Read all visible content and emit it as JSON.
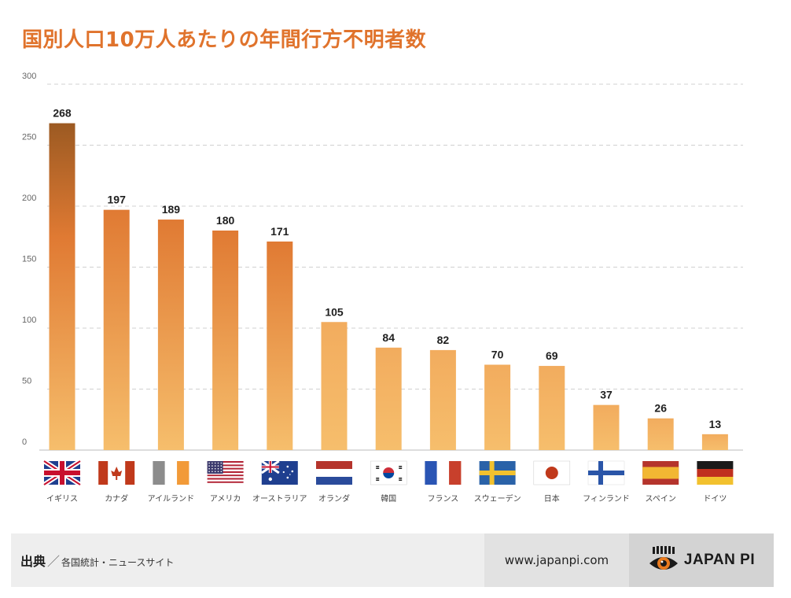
{
  "page": {
    "title": "国別人口10万人あたりの年間行方不明者数"
  },
  "footer": {
    "source_label": "出典",
    "source_slash": "／",
    "source_text": "各国統計・ニュースサイト",
    "url": "www.japanpi.com",
    "logo_text": "JAPAN PI",
    "logo_icon": "eye-logo-icon"
  },
  "colors": {
    "title": "#E0732C",
    "bar_top_tallest": "#9C5A22",
    "bar_mid": "#E07A33",
    "bar_light": "#F2AC5E",
    "bar_bottom": "#F6BE6C",
    "grid": "#d0d0d0"
  },
  "chart_data": {
    "type": "bar",
    "title": "国別人口10万人あたりの年間行方不明者数",
    "xlabel": "",
    "ylabel": "",
    "ylim": [
      0,
      300
    ],
    "yticks": [
      0,
      50,
      100,
      150,
      200,
      250,
      300
    ],
    "grid": true,
    "categories": [
      "イギリス",
      "カナダ",
      "アイルランド",
      "アメリカ",
      "オーストラリア",
      "オランダ",
      "韓国",
      "フランス",
      "スウェーデン",
      "日本",
      "フィンランド",
      "スペイン",
      "ドイツ"
    ],
    "values": [
      268,
      197,
      189,
      180,
      171,
      105,
      84,
      82,
      70,
      69,
      37,
      26,
      13
    ],
    "flags": [
      "uk-flag-icon",
      "canada-flag-icon",
      "ireland-flag-icon",
      "usa-flag-icon",
      "australia-flag-icon",
      "netherlands-flag-icon",
      "korea-flag-icon",
      "france-flag-icon",
      "sweden-flag-icon",
      "japan-flag-icon",
      "finland-flag-icon",
      "spain-flag-icon",
      "germany-flag-icon"
    ]
  }
}
